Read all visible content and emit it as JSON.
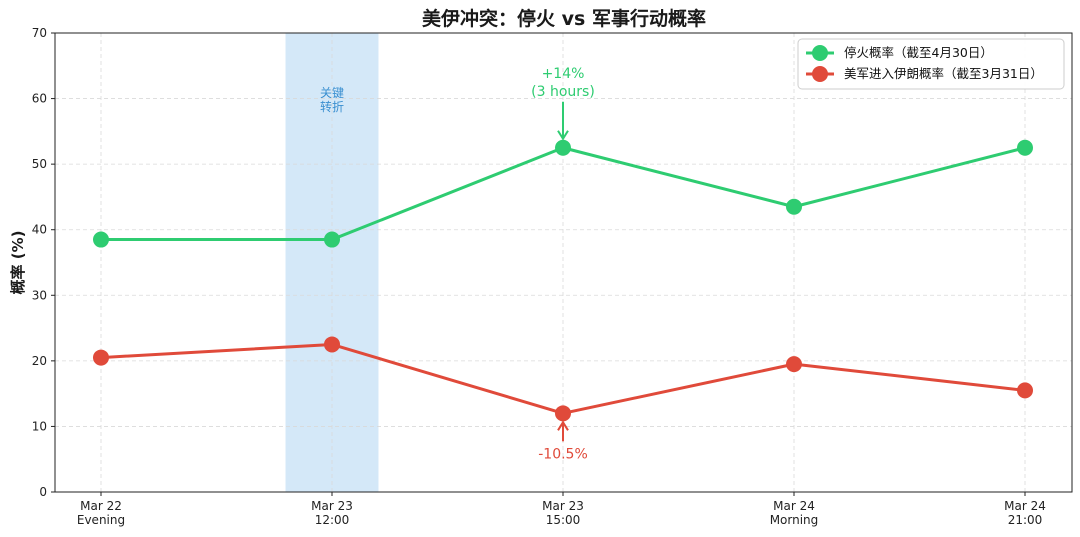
{
  "chart_data": {
    "type": "line",
    "title": "美伊冲突：停火 vs 军事行动概率",
    "ylabel": "概率 (%)",
    "xlabel": "",
    "ylim": [
      0,
      70
    ],
    "yticks": [
      0,
      10,
      20,
      30,
      40,
      50,
      60,
      70
    ],
    "categories": [
      [
        "Mar 22",
        "Evening"
      ],
      [
        "Mar 23",
        "12:00"
      ],
      [
        "Mar 23",
        "15:00"
      ],
      [
        "Mar 24",
        "Morning"
      ],
      [
        "Mar 24",
        "21:00"
      ]
    ],
    "grid": true,
    "legend_position": "top-right",
    "series": [
      {
        "name": "停火概率（截至4月30日）",
        "color": "#2ecc71",
        "values": [
          38.5,
          38.5,
          52.5,
          43.5,
          52.5
        ]
      },
      {
        "name": "美军进入伊朗概率（截至3月31日）",
        "color": "#e04a3a",
        "values": [
          20.5,
          22.5,
          12,
          19.5,
          15.5
        ]
      }
    ],
    "shaded_region": {
      "from_index": 1,
      "to_index": 1.4,
      "color": "#cfe6f7",
      "label": [
        "关键",
        "转折"
      ]
    },
    "annotations": [
      {
        "series": 0,
        "index": 2,
        "text": [
          "+14%",
          "(3 hours)"
        ],
        "color": "#2ecc71",
        "position": "above"
      },
      {
        "series": 1,
        "index": 2,
        "text": [
          "-10.5%"
        ],
        "color": "#e04a3a",
        "position": "below"
      }
    ]
  }
}
